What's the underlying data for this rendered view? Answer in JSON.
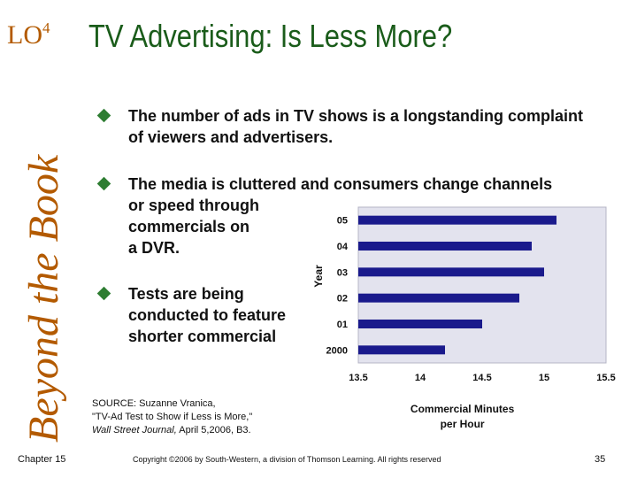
{
  "header": {
    "lo_label": "LO",
    "lo_number": "4",
    "title": "TV Advertising: Is Less More?"
  },
  "sidebar": {
    "text": "Beyond the Book"
  },
  "bullets": [
    {
      "text": "The number of ads in TV shows is a longstanding complaint of viewers and advertisers."
    },
    {
      "text": "The media is cluttered and consumers change channels",
      "continuation": [
        "or speed through",
        "commercials on",
        "a DVR."
      ]
    },
    {
      "text": "Tests are being conducted to feature shorter commercial"
    }
  ],
  "source": {
    "line1": "SOURCE:  Suzanne Vranica,",
    "line2": "\"TV-Ad Test to Show if Less is More,\"",
    "line3_publication": "Wall Street Journal,",
    "line3_rest": "  April 5,2006, B3."
  },
  "footer": {
    "chapter": "Chapter 15",
    "copyright": "Copyright ©2006 by South-Western, a division of Thomson Learning.  All rights reserved",
    "page": "35"
  },
  "colors": {
    "bar": "#1a1a8c",
    "plot_bg": "#e3e3ee",
    "title": "#1a5c1a",
    "accent": "#b35a00",
    "bullet": "#2e7d32"
  },
  "chart_data": {
    "type": "bar",
    "orientation": "horizontal",
    "categories": [
      "2000",
      "01",
      "02",
      "03",
      "04",
      "05"
    ],
    "values": [
      14.2,
      14.5,
      14.8,
      15.0,
      14.9,
      15.1
    ],
    "xlabel": "Commercial Minutes per Hour",
    "ylabel": "Year",
    "xlim": [
      13.5,
      15.5
    ],
    "xticks": [
      "13.5",
      "14",
      "14.5",
      "15",
      "15.5"
    ],
    "grid": false,
    "legend": "none"
  }
}
